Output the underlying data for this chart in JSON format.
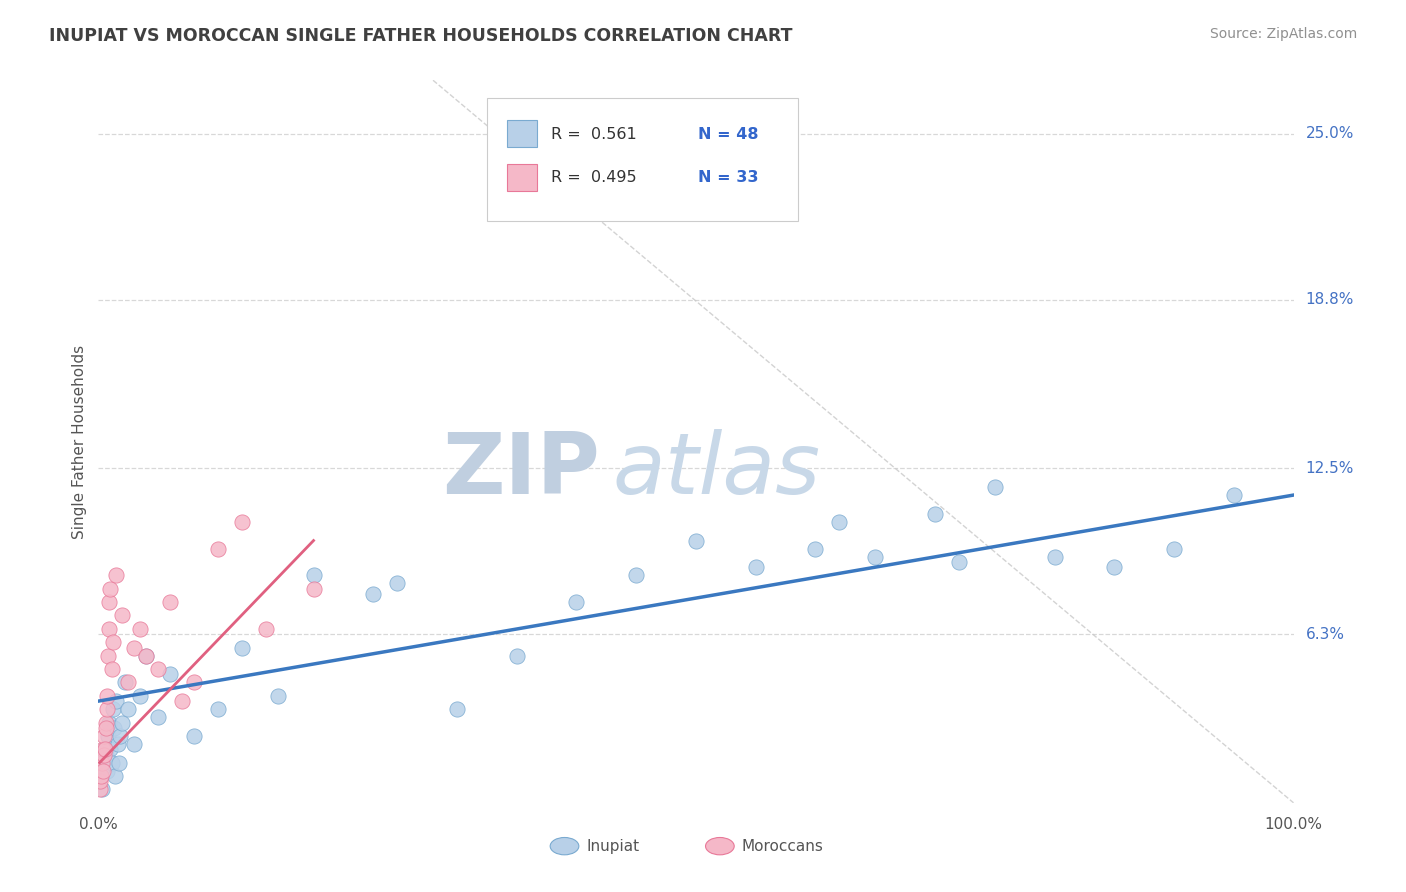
{
  "title": "INUPIAT VS MOROCCAN SINGLE FATHER HOUSEHOLDS CORRELATION CHART",
  "source_text": "Source: ZipAtlas.com",
  "ylabel": "Single Father Households",
  "watermark_zip": "ZIP",
  "watermark_atlas": "atlas",
  "y_tick_labels": [
    "6.3%",
    "12.5%",
    "18.8%",
    "25.0%"
  ],
  "y_ticks": [
    6.3,
    12.5,
    18.8,
    25.0
  ],
  "ylim": [
    0,
    27
  ],
  "xlim": [
    0,
    100
  ],
  "legend_r1": "R =  0.561",
  "legend_n1": "N = 48",
  "legend_r2": "R =  0.495",
  "legend_n2": "N = 33",
  "legend_label1": "Inupiat",
  "legend_label2": "Moroccans",
  "inupiat_color": "#b8d0e8",
  "moroccan_color": "#f5b8c8",
  "inupiat_edge_color": "#7aaad0",
  "moroccan_edge_color": "#e87898",
  "inupiat_line_color": "#3a78c0",
  "moroccan_line_color": "#e06080",
  "diag_line_color": "#c8c8c8",
  "background_color": "#ffffff",
  "grid_color": "#d8d8d8",
  "title_color": "#404040",
  "source_color": "#909090",
  "watermark_zip_color": "#c8d4e4",
  "watermark_atlas_color": "#c8d4e4",
  "legend_r_color": "#333333",
  "legend_n_color": "#3366cc",
  "inupiat_x": [
    0.2,
    0.3,
    0.4,
    0.5,
    0.6,
    0.7,
    0.8,
    0.9,
    1.0,
    1.1,
    1.2,
    1.3,
    1.4,
    1.5,
    1.6,
    1.7,
    1.8,
    2.0,
    2.2,
    2.5,
    3.0,
    3.5,
    4.0,
    5.0,
    6.0,
    8.0,
    10.0,
    12.0,
    15.0,
    18.0,
    23.0,
    25.0,
    30.0,
    35.0,
    40.0,
    45.0,
    50.0,
    55.0,
    60.0,
    62.0,
    65.0,
    70.0,
    72.0,
    75.0,
    80.0,
    85.0,
    90.0,
    95.0
  ],
  "inupiat_y": [
    1.0,
    0.5,
    1.5,
    2.0,
    1.8,
    1.2,
    2.5,
    3.0,
    2.0,
    1.5,
    3.5,
    2.8,
    1.0,
    3.8,
    2.2,
    1.5,
    2.5,
    3.0,
    4.5,
    3.5,
    2.2,
    4.0,
    5.5,
    3.2,
    4.8,
    2.5,
    3.5,
    5.8,
    4.0,
    8.5,
    7.8,
    8.2,
    3.5,
    5.5,
    7.5,
    8.5,
    9.8,
    8.8,
    9.5,
    10.5,
    9.2,
    10.8,
    9.0,
    11.8,
    9.2,
    8.8,
    9.5,
    11.5
  ],
  "moroccan_x": [
    0.1,
    0.15,
    0.2,
    0.3,
    0.35,
    0.4,
    0.45,
    0.5,
    0.55,
    0.6,
    0.65,
    0.7,
    0.75,
    0.8,
    0.85,
    0.9,
    1.0,
    1.1,
    1.2,
    1.5,
    2.0,
    2.5,
    3.0,
    3.5,
    4.0,
    5.0,
    6.0,
    7.0,
    8.0,
    10.0,
    12.0,
    14.0,
    18.0
  ],
  "moroccan_y": [
    0.5,
    0.8,
    1.0,
    1.5,
    1.2,
    2.0,
    1.8,
    2.5,
    2.0,
    3.0,
    2.8,
    3.5,
    4.0,
    5.5,
    6.5,
    7.5,
    8.0,
    5.0,
    6.0,
    8.5,
    7.0,
    4.5,
    5.8,
    6.5,
    5.5,
    5.0,
    7.5,
    3.8,
    4.5,
    9.5,
    10.5,
    6.5,
    8.0
  ],
  "inupiat_trendline_x": [
    0,
    100
  ],
  "inupiat_trendline_y": [
    3.8,
    11.5
  ],
  "moroccan_trendline_x": [
    0.1,
    18.0
  ],
  "moroccan_trendline_y": [
    1.5,
    9.8
  ]
}
